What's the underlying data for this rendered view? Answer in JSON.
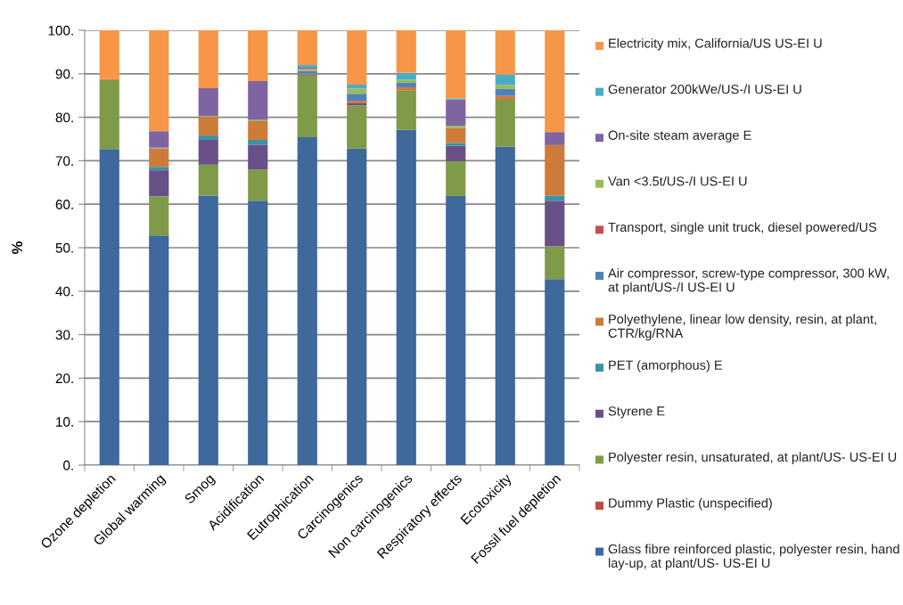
{
  "chart_data": {
    "type": "bar",
    "stacked": true,
    "ylabel": "%",
    "categories": [
      "Ozone depletion",
      "Global warming",
      "Smog",
      "Acidification",
      "Eutrophication",
      "Carcinogenics",
      "Non carcinogenics",
      "Respiratory effects",
      "Ecotoxicity",
      "Fossil fuel depletion"
    ],
    "series": [
      {
        "name": "Glass fibre reinforced plastic, polyester resin, hand lay-up, at plant/US- US-EI U",
        "color": "#3f689d",
        "values": [
          72.7,
          52.8,
          62.0,
          60.8,
          75.4,
          72.8,
          77.1,
          61.9,
          73.2,
          42.8
        ]
      },
      {
        "name": "Dummy Plastic (unspecified)",
        "color": "#be4b48",
        "values": [
          0,
          0,
          0,
          0,
          0,
          0,
          0,
          0,
          0,
          0
        ]
      },
      {
        "name": "Polyester resin, unsaturated, at plant/US- US-EI U",
        "color": "#7f9a48",
        "values": [
          15.8,
          9.0,
          7.1,
          7.2,
          14.2,
          9.9,
          9.0,
          8.0,
          10.8,
          7.5
        ]
      },
      {
        "name": "Styrene E",
        "color": "#6a5088",
        "values": [
          0,
          6.0,
          5.7,
          5.7,
          0.2,
          0.5,
          0,
          3.5,
          0,
          10.5
        ]
      },
      {
        "name": "PET (amorphous) E",
        "color": "#3d91a6",
        "values": [
          0,
          0.8,
          1.0,
          1.1,
          0.1,
          0,
          0,
          0.7,
          0,
          1.2
        ]
      },
      {
        "name": "Polyethylene, linear low density, resin, at plant, CTR/kg/RNA",
        "color": "#cd7b38",
        "values": [
          0.2,
          4.2,
          4.3,
          4.3,
          0.2,
          0.6,
          0.8,
          3.4,
          0.9,
          11.6
        ]
      },
      {
        "name": "Air compressor, screw-type compressor, 300 kW, at plant/US-/I US-EI U",
        "color": "#4f81bd",
        "values": [
          0,
          0.1,
          0,
          0,
          0.5,
          1.6,
          1.0,
          0,
          1.6,
          0
        ]
      },
      {
        "name": "Transport, single unit truck, diesel powered/US",
        "color": "#c0504d",
        "values": [
          0,
          0,
          0,
          0,
          0.1,
          0,
          0,
          0,
          0,
          0
        ]
      },
      {
        "name": "Van <3.5t/US-/I US-EI U",
        "color": "#9bbb59",
        "values": [
          0,
          0.1,
          0.2,
          0.3,
          0.4,
          1.2,
          0.7,
          0.5,
          0.9,
          0
        ]
      },
      {
        "name": "On-site steam average E",
        "color": "#8064a2",
        "values": [
          0.1,
          3.8,
          6.4,
          8.9,
          0.3,
          0,
          0,
          6.0,
          0,
          3.0
        ]
      },
      {
        "name": "Generator 200kWe/US-/I US-EI U",
        "color": "#4bacc6",
        "values": [
          null,
          0,
          0,
          0,
          0.6,
          0.9,
          1.6,
          0.3,
          2.4,
          0
        ]
      },
      {
        "name": "Electricity mix, California/US US-EI U",
        "color": "#f79646",
        "values": [
          11.2,
          23.2,
          13.3,
          11.7,
          8.0,
          12.5,
          9.8,
          15.7,
          10.2,
          23.4
        ]
      }
    ],
    "ylim": [
      0,
      100
    ],
    "yticks": [
      {
        "value": 0,
        "label": "0."
      },
      {
        "value": 10,
        "label": "10."
      },
      {
        "value": 20,
        "label": "20."
      },
      {
        "value": 30,
        "label": "30."
      },
      {
        "value": 40,
        "label": "40."
      },
      {
        "value": 50,
        "label": "50."
      },
      {
        "value": 60,
        "label": "60."
      },
      {
        "value": 70,
        "label": "70."
      },
      {
        "value": 80,
        "label": "80."
      },
      {
        "value": 90,
        "label": "90."
      },
      {
        "value": 100,
        "label": "100."
      }
    ],
    "grid": "y",
    "legend": "right"
  }
}
